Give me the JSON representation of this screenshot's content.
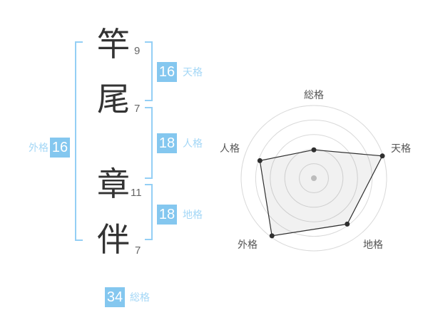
{
  "name_analysis": {
    "characters": [
      {
        "char": "竿",
        "strokes": "9"
      },
      {
        "char": "尾",
        "strokes": "7"
      },
      {
        "char": "章",
        "strokes": "11"
      },
      {
        "char": "伴",
        "strokes": "7"
      }
    ],
    "categories": {
      "tenkaku": {
        "label": "天格",
        "value": "16"
      },
      "jinkaku": {
        "label": "人格",
        "value": "18"
      },
      "chikaku": {
        "label": "地格",
        "value": "18"
      },
      "gaikaku": {
        "label": "外格",
        "value": "16"
      },
      "soukaku": {
        "label": "総格",
        "value": "34"
      }
    }
  },
  "colors": {
    "accent_blue": "#84C7EF",
    "bracket_blue": "#94CFF5",
    "label_blue": "#A4D7F6",
    "badge_text": "#ffffff",
    "kanji_text": "#333333",
    "stroke_count_text": "#666666",
    "chart_grid": "#d9d9d9",
    "chart_line": "#2f2f2f",
    "chart_fill": "rgba(120,120,120,0.10)",
    "chart_center_dot": "#c5c5c5",
    "chart_axis_label": "#555555"
  },
  "chart_data": {
    "type": "radar",
    "axes": [
      "総格",
      "天格",
      "地格",
      "外格",
      "人格"
    ],
    "values_pct_of_max_radius": [
      39,
      99,
      78,
      98,
      78
    ],
    "axis_badge_values": {
      "総格": 34,
      "天格": 16,
      "地格": 18,
      "外格": 16,
      "人格": 18
    },
    "rings": 5,
    "start_angle_deg": -90,
    "direction": "clockwise",
    "grid": "concentric-circles",
    "legend": "none",
    "title": ""
  }
}
